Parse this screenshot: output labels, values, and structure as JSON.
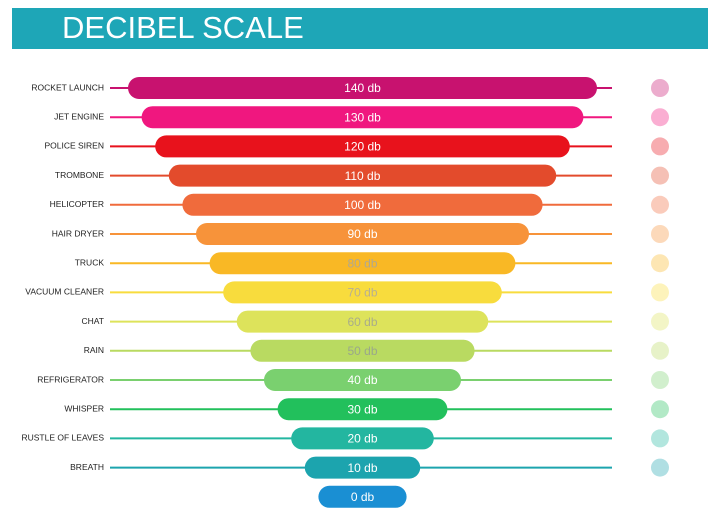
{
  "header": {
    "title": "DECIBEL SCALE"
  },
  "rows": [
    {
      "label": "ROCKET LAUNCH",
      "level": "140 db"
    },
    {
      "label": "JET ENGINE",
      "level": "130 db"
    },
    {
      "label": "POLICE SIREN",
      "level": "120 db"
    },
    {
      "label": "TROMBONE",
      "level": "110 db"
    },
    {
      "label": "HELICOPTER",
      "level": "100 db"
    },
    {
      "label": "HAIR DRYER",
      "level": "90 db"
    },
    {
      "label": "TRUCK",
      "level": "80 db"
    },
    {
      "label": "VACUUM CLEANER",
      "level": "70 db"
    },
    {
      "label": "CHAT",
      "level": "60 db"
    },
    {
      "label": "RAIN",
      "level": "50 db"
    },
    {
      "label": "REFRIGERATOR",
      "level": "40 db"
    },
    {
      "label": "WHISPER",
      "level": "30 db"
    },
    {
      "label": "RUSTLE OF LEAVES",
      "level": "20 db"
    },
    {
      "label": "BREATH",
      "level": "10 db"
    },
    {
      "level": "0 db"
    }
  ]
}
